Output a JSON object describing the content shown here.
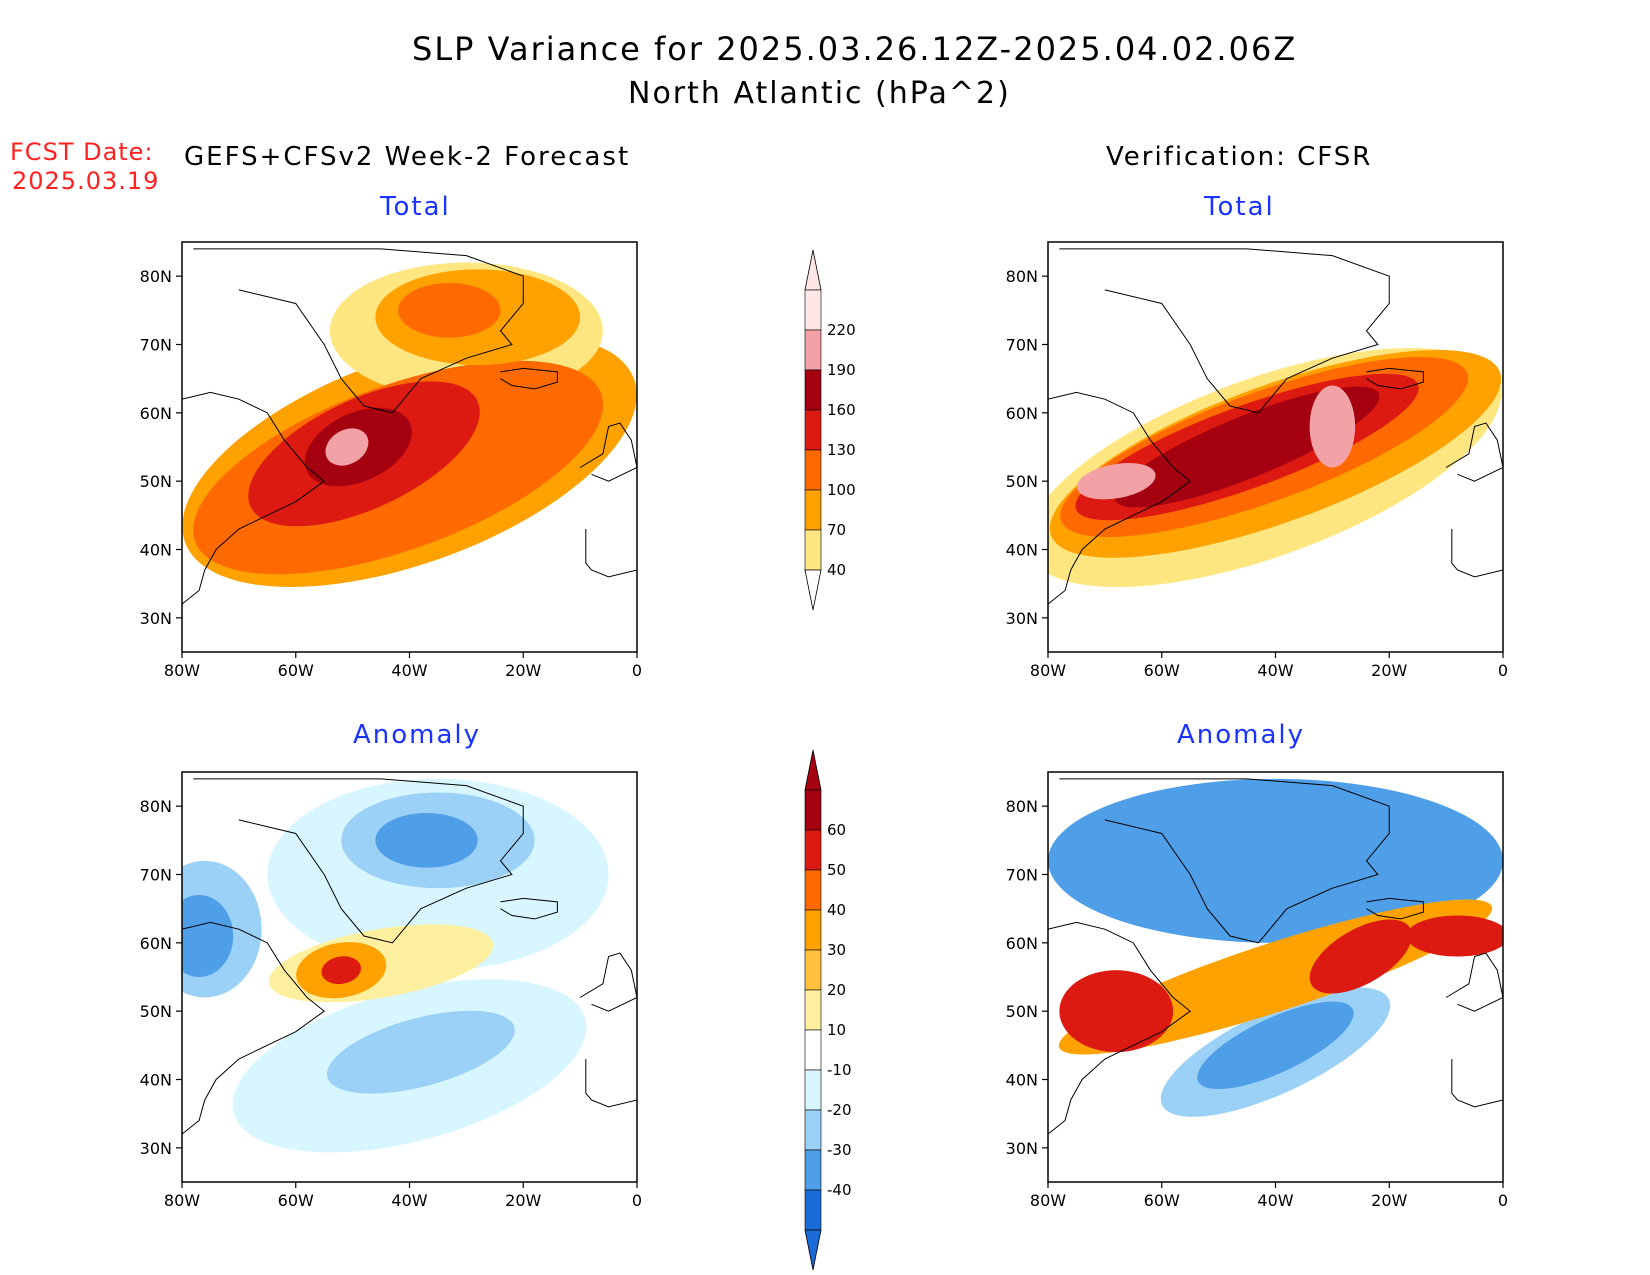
{
  "header": {
    "title_line1": "SLP Variance for 2025.03.26.12Z-2025.04.02.06Z",
    "title_line2": "North Atlantic (hPa^2)"
  },
  "fcst": {
    "line1": "FCST Date:",
    "line2": "2025.03.19"
  },
  "columns": {
    "forecast": "GEFS+CFSv2 Week-2 Forecast",
    "verification": "Verification: CFSR"
  },
  "panels": [
    {
      "id": "fc-total",
      "title": "Total"
    },
    {
      "id": "vf-total",
      "title": "Total"
    },
    {
      "id": "fc-anom",
      "title": "Anomaly"
    },
    {
      "id": "vf-anom",
      "title": "Anomaly"
    }
  ],
  "axes": {
    "lat_ticks": [
      "80N",
      "70N",
      "60N",
      "50N",
      "40N",
      "30N"
    ],
    "lon_ticks": [
      "80W",
      "60W",
      "40W",
      "20W",
      "0"
    ],
    "lat_range": [
      25,
      85
    ],
    "lon_range": [
      -80,
      0
    ]
  },
  "colorbars": {
    "total": {
      "levels": [
        "220",
        "190",
        "160",
        "130",
        "100",
        "70",
        "40"
      ],
      "colors": [
        "#ffe6e6",
        "#f2a1a6",
        "#a50010",
        "#dc1a12",
        "#ff6a00",
        "#ffa200",
        "#ffe680"
      ]
    },
    "anomaly": {
      "levels": [
        "60",
        "50",
        "40",
        "30",
        "20",
        "10",
        "-10",
        "-20",
        "-30",
        "-40"
      ],
      "colors": [
        "#a50010",
        "#dc1a12",
        "#ff6a00",
        "#ffa200",
        "#ffc040",
        "#fff0a0",
        "#ffffff",
        "#d8f6ff",
        "#9bd0f7",
        "#4f9ee8",
        "#1a6ad8"
      ]
    }
  },
  "colors": {
    "title": "#000000",
    "fcst_date": "#ff2020",
    "panel_title": "#1a33ff",
    "white_fill": "#ffffff"
  }
}
